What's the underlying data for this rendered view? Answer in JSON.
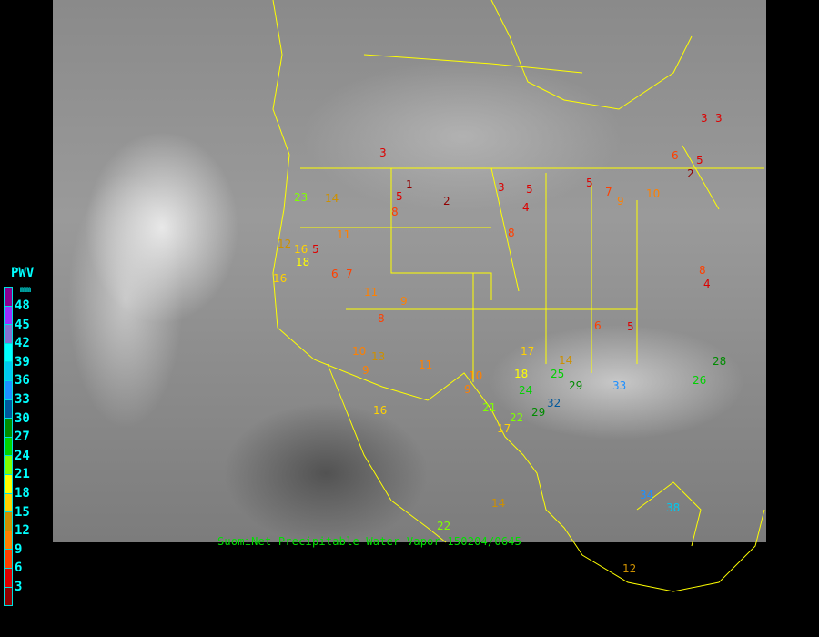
{
  "caption": "SuomiNet Precipitable Water Vapor 150204/0645",
  "colorbar": {
    "title": "PWV",
    "unit": "mm",
    "ticks": [
      "48",
      "45",
      "42",
      "39",
      "36",
      "33",
      "30",
      "27",
      "24",
      "21",
      "18",
      "15",
      "12",
      "9",
      "6",
      "3"
    ],
    "colors": [
      "#8b0090",
      "#9b30ff",
      "#8470d0",
      "#00ffff",
      "#00c8f0",
      "#1e90ff",
      "#00589c",
      "#008c00",
      "#00d200",
      "#80ff00",
      "#ffff00",
      "#ffd200",
      "#cd9000",
      "#ff8000",
      "#ff4000",
      "#dd0000",
      "#900000"
    ]
  },
  "boundary_color": "#ffff00",
  "stations": [
    "3",
    "3",
    "3",
    "6",
    "5",
    "2",
    "1",
    "2",
    "3",
    "5",
    "4",
    "5",
    "5",
    "8",
    "7",
    "9",
    "10",
    "8",
    "23",
    "14",
    "16",
    "11",
    "12",
    "18",
    "16",
    "5",
    "6",
    "7",
    "9",
    "11",
    "13",
    "8",
    "10",
    "6",
    "5",
    "8",
    "4",
    "9",
    "14",
    "17",
    "18",
    "24",
    "25",
    "29",
    "32",
    "33",
    "26",
    "28",
    "21",
    "22",
    "29",
    "16",
    "14",
    "34",
    "38",
    "12",
    "22",
    "17",
    "10",
    "9",
    "11"
  ]
}
